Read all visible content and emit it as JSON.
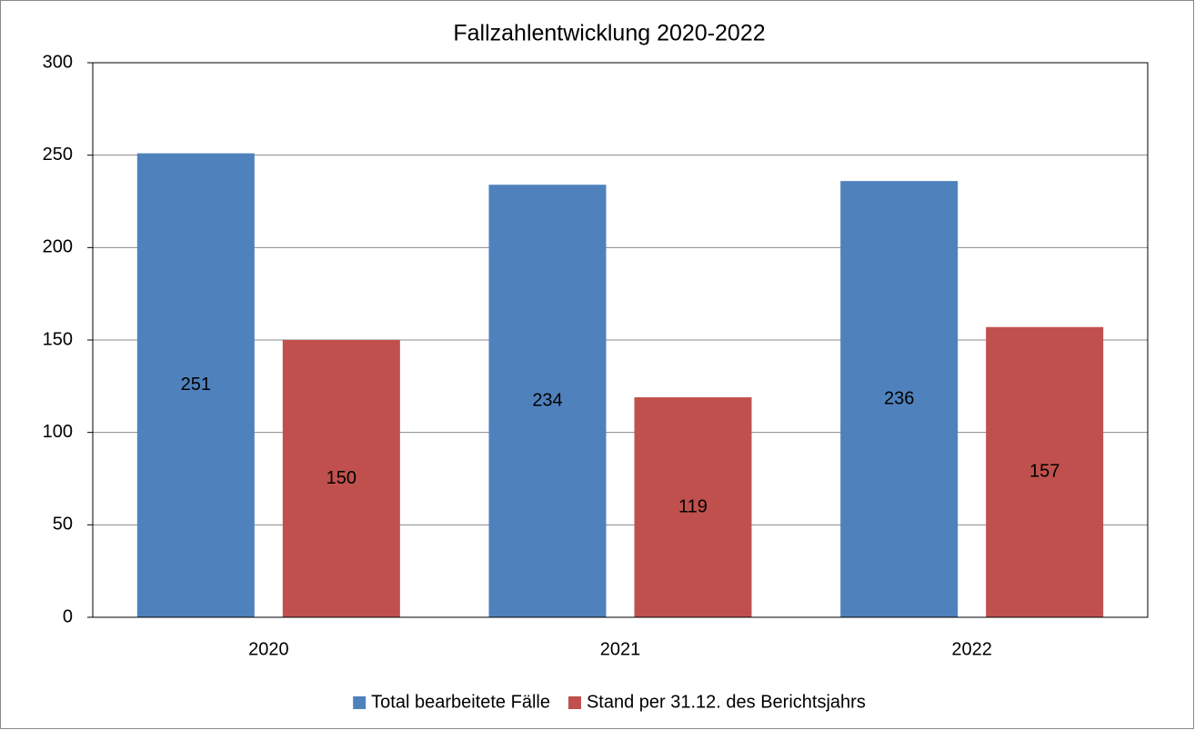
{
  "chart_data": {
    "type": "bar",
    "title": "Fallzahlentwicklung 2020-2022",
    "categories": [
      "2020",
      "2021",
      "2022"
    ],
    "series": [
      {
        "name": "Total bearbeitete Fälle",
        "color": "#4f81bd",
        "values": [
          251,
          234,
          236
        ]
      },
      {
        "name": "Stand per 31.12. des Berichtsjahrs",
        "color": "#c0504d",
        "values": [
          150,
          119,
          157
        ]
      }
    ],
    "ylim": [
      0,
      300
    ],
    "yticks": [
      0,
      50,
      100,
      150,
      200,
      250,
      300
    ],
    "grid": true,
    "legend": "bottom"
  }
}
